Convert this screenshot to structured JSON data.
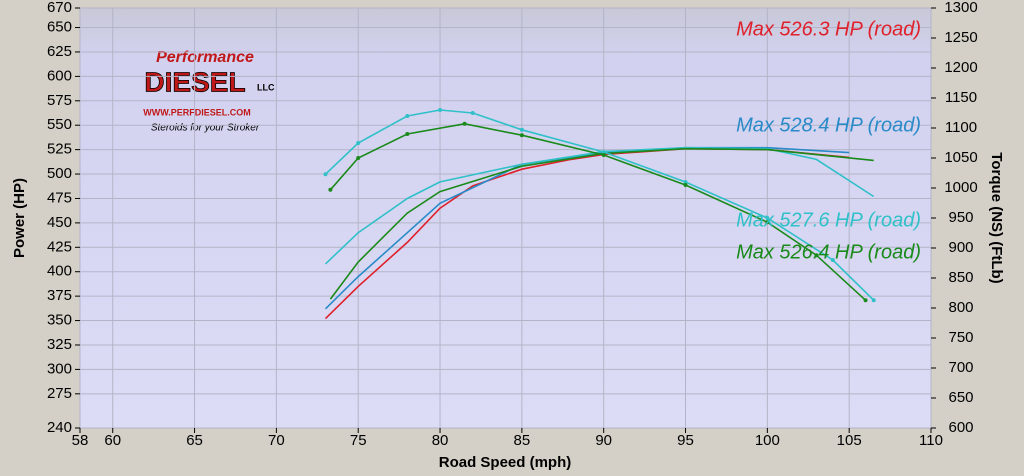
{
  "chart_data": {
    "type": "line",
    "xlabel": "Road Speed (mph)",
    "ylabel": "Power (HP)",
    "y2label": "Torque (NS) (FtLb)",
    "xlim": [
      58,
      110
    ],
    "xticks": [
      58,
      60,
      65,
      70,
      75,
      80,
      85,
      90,
      95,
      100,
      105,
      110
    ],
    "ylim": [
      240,
      670
    ],
    "yticks": [
      240,
      275,
      300,
      325,
      350,
      375,
      400,
      425,
      450,
      475,
      500,
      525,
      550,
      575,
      600,
      625,
      650,
      670
    ],
    "y2lim": [
      600,
      1300
    ],
    "y2ticks": [
      600,
      650,
      700,
      750,
      800,
      850,
      900,
      950,
      1000,
      1050,
      1100,
      1150,
      1200,
      1250,
      1300
    ],
    "grid": true,
    "annotations": [
      {
        "text": "Max 526.3 HP (road)",
        "color": "#e0202a"
      },
      {
        "text": "Max 528.4 HP (road)",
        "color": "#2a8ac8"
      },
      {
        "text": "Max 527.6 HP (road)",
        "color": "#30c0c8"
      },
      {
        "text": "Max 526.4 HP (road)",
        "color": "#1a8a1a"
      }
    ],
    "logo": {
      "brand": "Performance",
      "name": "DIESEL",
      "suffix": "LLC",
      "url": "WWW.PERFDIESEL.COM",
      "slogan": "Steroids for your Stroker"
    },
    "series": [
      {
        "color": "#e0202a",
        "x": [
          73,
          75,
          78,
          80,
          82,
          85,
          88,
          90,
          95,
          100,
          105
        ],
        "values": [
          352,
          385,
          430,
          465,
          488,
          505,
          515,
          520,
          526,
          525,
          517
        ]
      },
      {
        "color": "#2a8ac8",
        "x": [
          73,
          75,
          78,
          80,
          85,
          90,
          95,
          100,
          105
        ],
        "values": [
          362,
          395,
          440,
          470,
          510,
          522,
          527,
          527,
          522
        ]
      },
      {
        "color": "#30c0c8",
        "x": [
          73,
          75,
          78,
          80,
          85,
          90,
          95,
          100,
          103,
          106.5
        ],
        "values": [
          408,
          440,
          475,
          492,
          510,
          523,
          527,
          526,
          515,
          477
        ]
      },
      {
        "color": "#1a8a1a",
        "x": [
          73.3,
          75,
          78,
          80,
          85,
          90,
          95,
          100,
          106.5
        ],
        "values": [
          372,
          410,
          460,
          482,
          508,
          521,
          526,
          525,
          514
        ]
      },
      {
        "color": "#30c0c8",
        "axis": "y2",
        "x": [
          73,
          75,
          78,
          80,
          82,
          85,
          90,
          95,
          100,
          104,
          106.5
        ],
        "values": [
          1023,
          1075,
          1120,
          1130,
          1125,
          1097,
          1060,
          1010,
          950,
          880,
          813
        ]
      },
      {
        "color": "#1a8a1a",
        "axis": "y2",
        "x": [
          73.3,
          75,
          78,
          81.5,
          85,
          90,
          95,
          100,
          103,
          106
        ],
        "values": [
          997,
          1050,
          1090,
          1107,
          1088,
          1055,
          1005,
          943,
          888,
          813
        ]
      }
    ]
  }
}
